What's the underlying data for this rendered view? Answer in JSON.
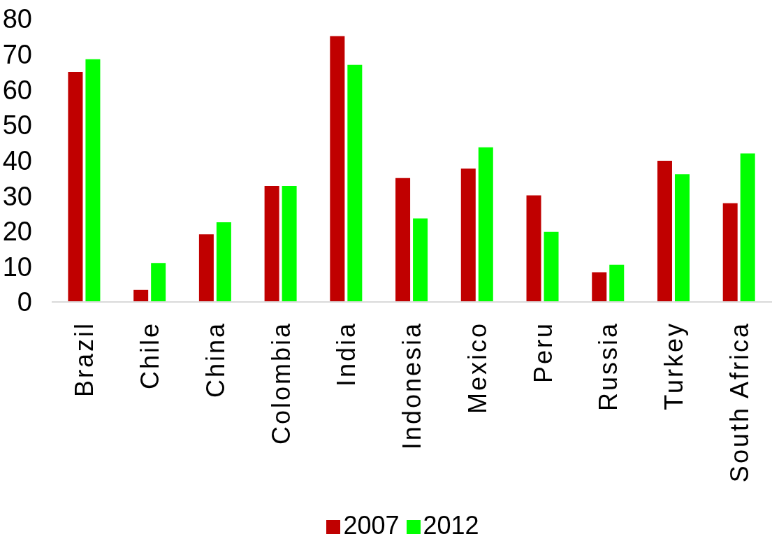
{
  "chart_data": {
    "type": "bar",
    "categories": [
      "Brazil",
      "Chile",
      "China",
      "Colombia",
      "India",
      "Indonesia",
      "Mexico",
      "Peru",
      "Russia",
      "Turkey",
      "South Africa"
    ],
    "series": [
      {
        "name": "2007",
        "color": "#c00000",
        "values": [
          65,
          3.4,
          19.1,
          32.8,
          75.1,
          35,
          37.7,
          30.1,
          8.4,
          39.9,
          27.9
        ]
      },
      {
        "name": "2012",
        "color": "#00ff00",
        "values": [
          68.6,
          11,
          22.5,
          32.8,
          67,
          23.6,
          43.7,
          19.8,
          10.5,
          36.1,
          42
        ]
      }
    ],
    "ylim": [
      0,
      80
    ],
    "yticks": [
      0,
      10,
      20,
      30,
      40,
      50,
      60,
      70,
      80
    ],
    "legend": "bottom"
  }
}
